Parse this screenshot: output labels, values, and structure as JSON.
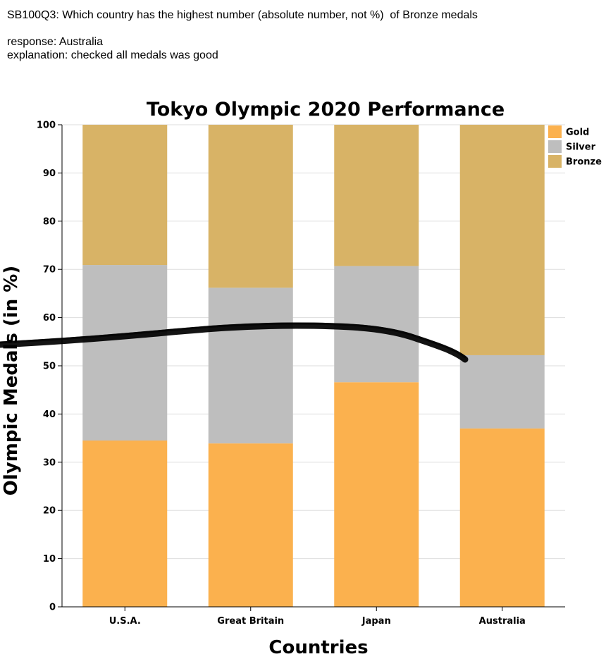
{
  "header": {
    "question": "SB100Q3: Which country has the highest number (absolute number, not %)  of Bronze medals",
    "response": "response: Australia",
    "explanation": "explanation: checked all medals was good"
  },
  "colors": {
    "gold": "#fbb14e",
    "silver": "#bebebe",
    "bronze": "#d8b366",
    "grid": "#dddddd",
    "axis": "#000000",
    "annotation": "#000000"
  },
  "chart_data": {
    "type": "bar",
    "stacked": true,
    "title": "Tokyo Olympic 2020 Performance",
    "xlabel": "Countries",
    "ylabel": "Olympic Medals (in %)",
    "ylim": [
      0,
      100
    ],
    "yticks": [
      0,
      10,
      20,
      30,
      40,
      50,
      60,
      70,
      80,
      90,
      100
    ],
    "grid": true,
    "legend_position": "top-right",
    "categories": [
      "U.S.A.",
      "Great Britain",
      "Japan",
      "Australia"
    ],
    "series": [
      {
        "name": "Gold",
        "color": "#fbb14e",
        "values": [
          34.5,
          33.9,
          46.6,
          37.0
        ]
      },
      {
        "name": "Silver",
        "color": "#bebebe",
        "values": [
          36.4,
          32.3,
          24.1,
          15.2
        ]
      },
      {
        "name": "Bronze",
        "color": "#d8b366",
        "values": [
          29.1,
          33.8,
          29.3,
          47.8
        ]
      }
    ],
    "annotation": "hand-drawn black curved line across the chart"
  }
}
